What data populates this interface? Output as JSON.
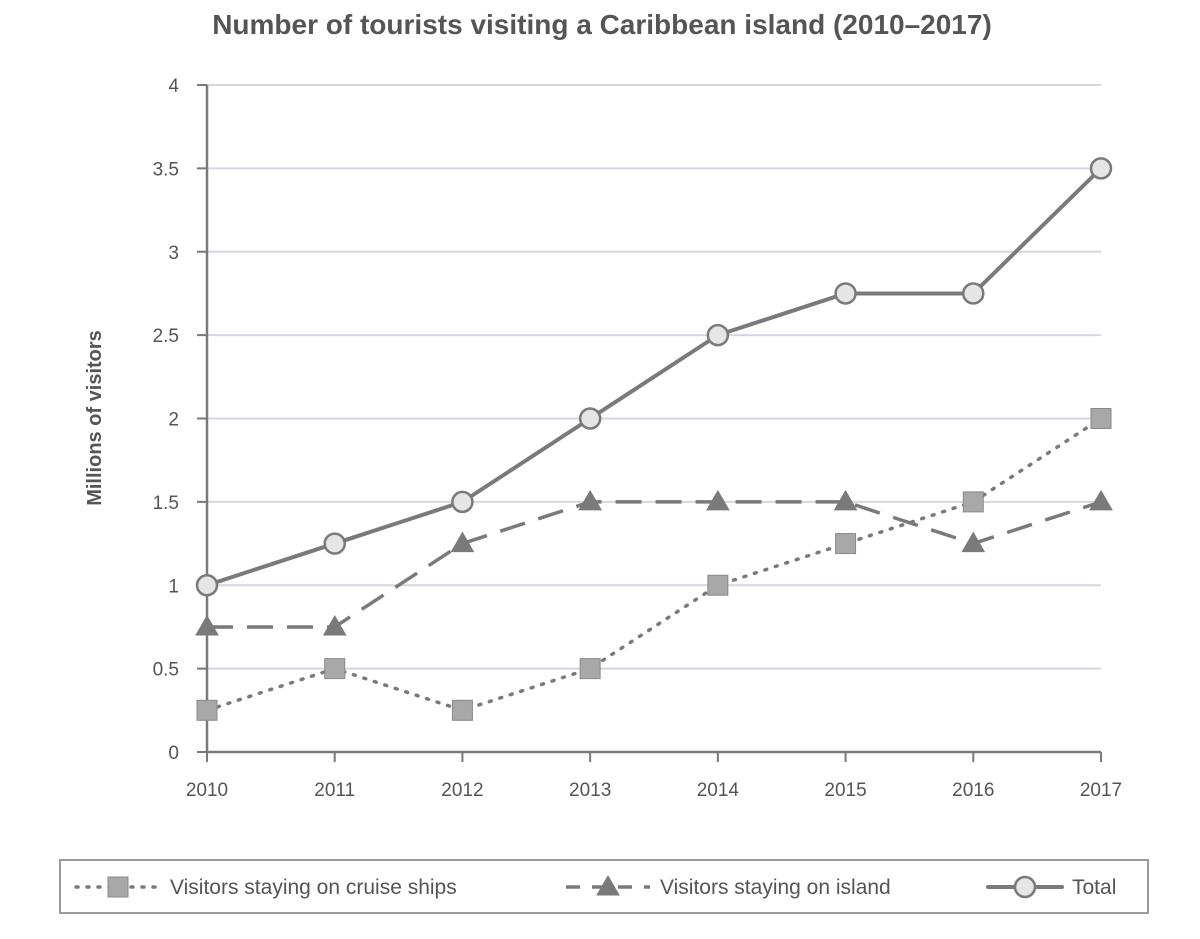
{
  "chart_data": {
    "type": "line",
    "title": "Number of tourists visiting a Caribbean island (2010–2017)",
    "xlabel": "",
    "ylabel": "Millions of visitors",
    "x": [
      "2010",
      "2011",
      "2012",
      "2013",
      "2014",
      "2015",
      "2016",
      "2017"
    ],
    "ylim": [
      0,
      4
    ],
    "yticks": [
      "0",
      "0.5",
      "1",
      "1.5",
      "2",
      "2.5",
      "3",
      "3.5",
      "4"
    ],
    "grid": true,
    "legend_position": "bottom",
    "series": [
      {
        "name": "Visitors staying on cruise ships",
        "marker": "square",
        "line_style": "dotted",
        "values": [
          0.25,
          0.5,
          0.25,
          0.5,
          1.0,
          1.25,
          1.5,
          2.0
        ]
      },
      {
        "name": "Visitors staying on island",
        "marker": "triangle",
        "line_style": "dashed",
        "values": [
          0.75,
          0.75,
          1.25,
          1.5,
          1.5,
          1.5,
          1.25,
          1.5
        ]
      },
      {
        "name": "Total",
        "marker": "circle",
        "line_style": "solid",
        "values": [
          1.0,
          1.25,
          1.5,
          2.0,
          2.5,
          2.75,
          2.75,
          3.5
        ]
      }
    ],
    "colors": {
      "line": "#7a7a7a",
      "marker_fill_square": "#a8a8a8",
      "marker_fill_triangle": "#7a7a7a",
      "marker_fill_circle": "#e6e6e6",
      "grid": "#d6d6e2",
      "axis": "#7a7a7a",
      "text": "#555555",
      "title": "#555555"
    }
  }
}
